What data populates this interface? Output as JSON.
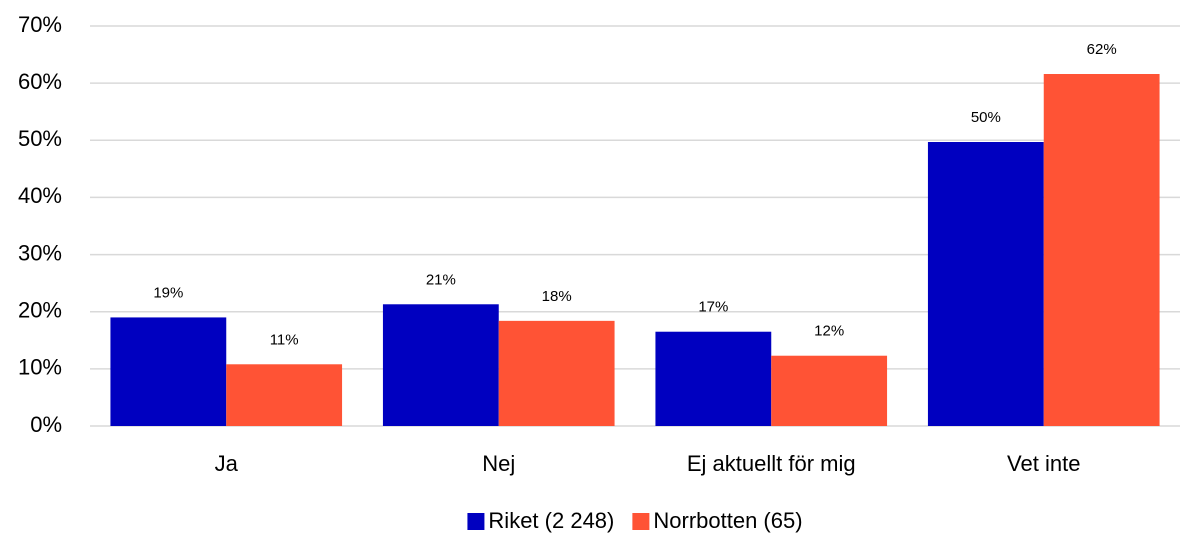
{
  "chart_data": {
    "type": "bar",
    "categories": [
      "Ja",
      "Nej",
      "Ej aktuellt för mig",
      "Vet inte"
    ],
    "series": [
      {
        "name": "Riket (2 248)",
        "color": "#0000c0",
        "values": [
          19,
          21.3,
          16.5,
          49.7
        ],
        "value_labels": [
          "19%",
          "21%",
          "17%",
          "50%"
        ]
      },
      {
        "name": "Norrbotten (65)",
        "color": "#ff5335",
        "values": [
          10.8,
          18.4,
          12.3,
          61.6
        ],
        "value_labels": [
          "11%",
          "18%",
          "12%",
          "62%"
        ]
      }
    ],
    "ylim": [
      0,
      70
    ],
    "yticks": [
      {
        "value": 0,
        "label": "0%"
      },
      {
        "value": 10,
        "label": "10%"
      },
      {
        "value": 20,
        "label": "20%"
      },
      {
        "value": 30,
        "label": "30%"
      },
      {
        "value": 40,
        "label": "40%"
      },
      {
        "value": 50,
        "label": "50%"
      },
      {
        "value": 60,
        "label": "60%"
      },
      {
        "value": 70,
        "label": "70%"
      }
    ],
    "grid": true,
    "legend": "bottom"
  }
}
